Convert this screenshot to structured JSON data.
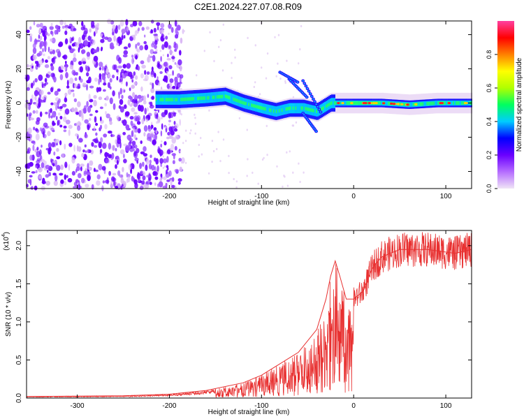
{
  "title": "C2E1.2024.227.07.08.R09",
  "chart_data": [
    {
      "type": "heatmap",
      "xlabel": "Height of straight line (km)",
      "ylabel": "Frequency (Hz)",
      "xlim": [
        -355,
        128
      ],
      "ylim": [
        -50,
        48
      ],
      "xticks": [
        -300,
        -200,
        -100,
        0,
        100
      ],
      "yticks": [
        -40,
        -20,
        0,
        20,
        40
      ],
      "colorbar": {
        "label": "Normalized spectral amplitude",
        "range": [
          0,
          1
        ],
        "ticks": [
          "0.0",
          "0.2",
          "0.4",
          "0.6",
          "0.8"
        ],
        "colors": [
          "#f0e4f6",
          "#b56cff",
          "#6a00ff",
          "#0000ff",
          "#00ccff",
          "#00ff60",
          "#b0ff00",
          "#ffff00",
          "#ff8000",
          "#ff0000",
          "#ff40a0"
        ]
      },
      "features": {
        "noise_region_x": [
          -355,
          -205
        ],
        "band_points": [
          [
            -215,
            2
          ],
          [
            -190,
            2
          ],
          [
            -160,
            3
          ],
          [
            -140,
            4
          ],
          [
            -120,
            0
          ],
          [
            -100,
            -3
          ],
          [
            -85,
            -5
          ],
          [
            -70,
            -3
          ],
          [
            -55,
            -3
          ],
          [
            -40,
            -5
          ],
          [
            -25,
            0
          ],
          [
            -10,
            0
          ],
          [
            0,
            0
          ],
          [
            30,
            0
          ],
          [
            60,
            -1
          ],
          [
            90,
            0
          ],
          [
            128,
            0
          ]
        ]
      },
      "grid": false
    },
    {
      "type": "line",
      "xlabel": "Height of straight line (km)",
      "ylabel": "SNR (10 * v/v)",
      "scale_label": "(x10",
      "scale_exp": "4",
      "scale_close": ")",
      "xlim": [
        -355,
        128
      ],
      "ylim": [
        0,
        2.2
      ],
      "xticks": [
        -300,
        -200,
        -100,
        0,
        100
      ],
      "yticks": [
        "0.0",
        "0.5",
        "1.0",
        "1.5",
        "2.0"
      ],
      "series": [
        {
          "color": "#e83030",
          "envelope": [
            [
              -355,
              0.02
            ],
            [
              -250,
              0.03
            ],
            [
              -200,
              0.05
            ],
            [
              -160,
              0.1
            ],
            [
              -120,
              0.2
            ],
            [
              -100,
              0.3
            ],
            [
              -80,
              0.45
            ],
            [
              -60,
              0.6
            ],
            [
              -40,
              0.9
            ],
            [
              -30,
              1.3
            ],
            [
              -25,
              1.6
            ],
            [
              -20,
              1.8
            ],
            [
              -15,
              1.6
            ],
            [
              -8,
              1.3
            ],
            [
              0,
              1.3
            ],
            [
              10,
              1.4
            ],
            [
              20,
              1.7
            ],
            [
              30,
              1.85
            ],
            [
              50,
              1.95
            ],
            [
              80,
              1.95
            ],
            [
              110,
              1.9
            ],
            [
              128,
              1.95
            ]
          ]
        }
      ],
      "grid": false
    }
  ]
}
